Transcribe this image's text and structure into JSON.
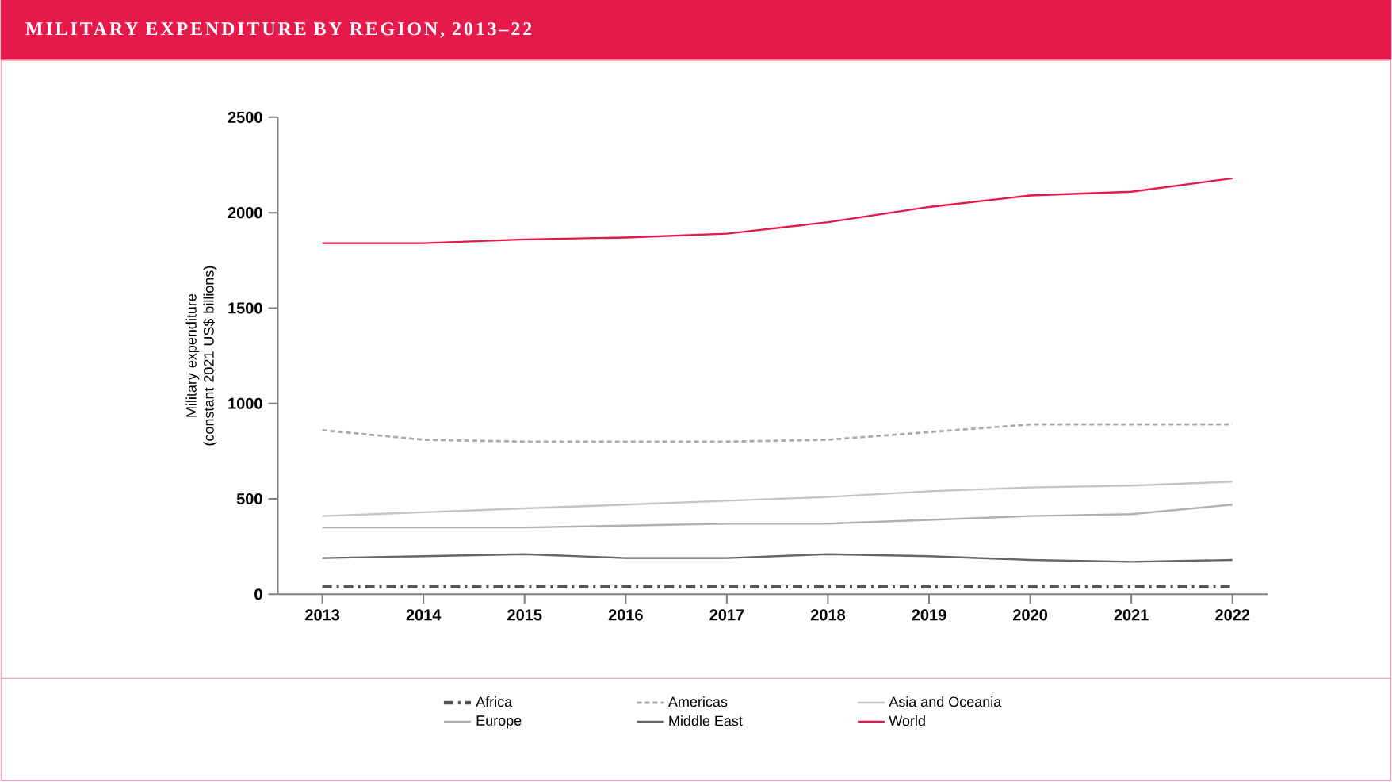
{
  "chart_data": {
    "type": "line",
    "title": "MILITARY EXPENDITURE BY REGION, 2013–22",
    "ylabel": "Military expenditure (constant 2021 US$ billions)",
    "x": [
      2013,
      2014,
      2015,
      2016,
      2017,
      2018,
      2019,
      2020,
      2021,
      2022
    ],
    "series": [
      {
        "name": "Africa",
        "color": "#555555",
        "line_style": "dashdot",
        "values": [
          40,
          40,
          40,
          40,
          40,
          40,
          40,
          40,
          40,
          40
        ]
      },
      {
        "name": "Americas",
        "color": "#aaaaaa",
        "line_style": "dashed",
        "values": [
          860,
          810,
          800,
          800,
          800,
          810,
          850,
          890,
          890,
          890
        ]
      },
      {
        "name": "Asia and Oceania",
        "color": "#c4c4c4",
        "line_style": "solid",
        "values": [
          410,
          430,
          450,
          470,
          490,
          510,
          540,
          560,
          570,
          590
        ]
      },
      {
        "name": "Europe",
        "color": "#b0b0b0",
        "line_style": "solid",
        "values": [
          350,
          350,
          350,
          360,
          370,
          370,
          390,
          410,
          420,
          470
        ]
      },
      {
        "name": "Middle East",
        "color": "#666666",
        "line_style": "solid",
        "values": [
          190,
          200,
          210,
          190,
          190,
          210,
          200,
          180,
          170,
          180
        ]
      },
      {
        "name": "World",
        "color": "#e5194a",
        "line_style": "solid",
        "values": [
          1840,
          1840,
          1860,
          1870,
          1890,
          1950,
          2030,
          2090,
          2110,
          2180
        ]
      }
    ],
    "xlim": [
      2012.56,
      2022.35
    ],
    "ylim": [
      0,
      2500
    ],
    "xticks": [
      2013,
      2014,
      2015,
      2016,
      2017,
      2018,
      2019,
      2020,
      2021,
      2022
    ],
    "yticks": [
      0,
      500,
      1000,
      1500,
      2000,
      2500
    ],
    "grid": false,
    "legend": "bottom"
  }
}
